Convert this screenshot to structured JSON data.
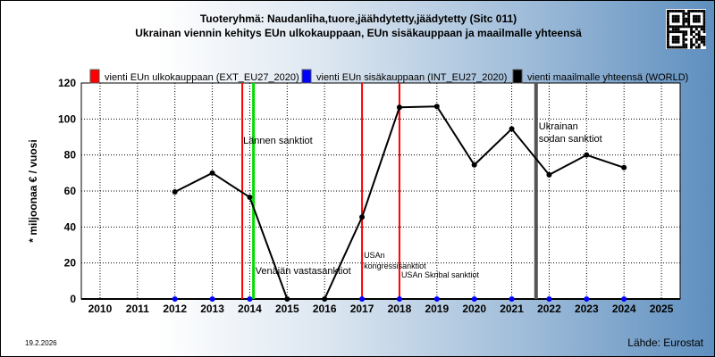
{
  "title_line1": "Tuoteryhmä: Naudanliha,tuore,jäähdytetty,jäädytetty (Sitc 011)",
  "title_line2": "Ukrainan viennin kehitys EUn ulkokauppaan, EUn sisäkauppaan ja maailmalle yhteensä",
  "date": "19.2.2026",
  "source": "Lähde: Eurostat",
  "chart_data": {
    "type": "line",
    "x": [
      "2010",
      "2011",
      "2012",
      "2013",
      "2014",
      "2015",
      "2016",
      "2017",
      "2018",
      "2019",
      "2020",
      "2021",
      "2022",
      "2023",
      "2024",
      "2025"
    ],
    "ylabel": "* miljoonaa € / vuosi",
    "ylim": [
      0,
      120
    ],
    "yticks": [
      "0",
      "20",
      "40",
      "60",
      "80",
      "100",
      "120"
    ],
    "grid": true,
    "legend_position": "top",
    "series": [
      {
        "name": "vienti EUn ulkokauppaan (EXT_EU27_2020)",
        "color": "#ff0000",
        "values": [
          null,
          null,
          0,
          0,
          0,
          null,
          null,
          0,
          0,
          0,
          0,
          0,
          0,
          0,
          0,
          null
        ]
      },
      {
        "name": "vienti EUn sisäkauppaan (INT_EU27_2020)",
        "color": "#0000ff",
        "values": [
          null,
          null,
          0,
          0,
          0,
          null,
          null,
          0,
          0,
          0,
          0,
          0,
          0,
          0,
          0,
          null
        ]
      },
      {
        "name": "vienti maailmalle yhteensä (WORLD)",
        "color": "#000000",
        "values": [
          null,
          null,
          59.5,
          70,
          56.5,
          0,
          0,
          45.5,
          106.5,
          107,
          74.5,
          94.5,
          69,
          80,
          73,
          null
        ]
      }
    ],
    "events": [
      {
        "label": "Lännen sanktiot",
        "x": 2013.8,
        "color": "#ff0000"
      },
      {
        "label": "Venäjän vastasanktiot",
        "x": 2014.1,
        "color": "#00dd00"
      },
      {
        "label": "USAn kongressisanktiot",
        "x": 2017.0,
        "color": "#ff0000"
      },
      {
        "label": "USAn Skribal sanktiot",
        "x": 2018.0,
        "color": "#ff0000"
      },
      {
        "label": "Ukrainan sodan sanktiot",
        "x": 2021.65,
        "color": "#555555"
      }
    ]
  },
  "colors": {
    "axis": "#000000",
    "grid": "#000000"
  },
  "icons": {
    "qr": "qr-code-icon"
  }
}
